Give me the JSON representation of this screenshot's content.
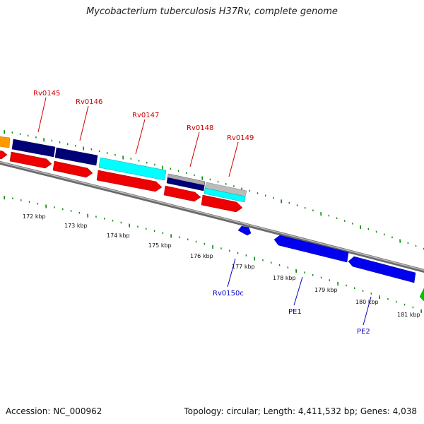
{
  "title": "Mycobacterium tuberculosis H37Rv, complete genome",
  "footer": {
    "accession": "Accession: NC_000962",
    "summary": "Topology: circular; Length: 4,411,532 bp; Genes: 4,038"
  },
  "scale_ticks": [
    "172 kbp",
    "173 kbp",
    "174 kbp",
    "175 kbp",
    "176 kbp",
    "177 kbp",
    "178 kbp",
    "179 kbp",
    "180 kbp",
    "181 kbp"
  ],
  "forward_gene_labels": [
    "Rv0145",
    "Rv0146",
    "Rv0147",
    "Rv0148",
    "Rv0149"
  ],
  "reverse_gene_labels": [
    "Rv0150c",
    "PE1",
    "PE2"
  ],
  "colors": {
    "backbone": "#888888",
    "forward_cds": "#ee0000",
    "reverse_cds": "#0000ee",
    "feature_navy": "#000077",
    "feature_cyan": "#00ffff",
    "feature_gray": "#bbbbbb",
    "feature_orange": "#ff9900",
    "feature_green": "#00cc00",
    "tick_green": "#008800",
    "label_red": "#cc0000",
    "label_blue": "#0000cc"
  }
}
